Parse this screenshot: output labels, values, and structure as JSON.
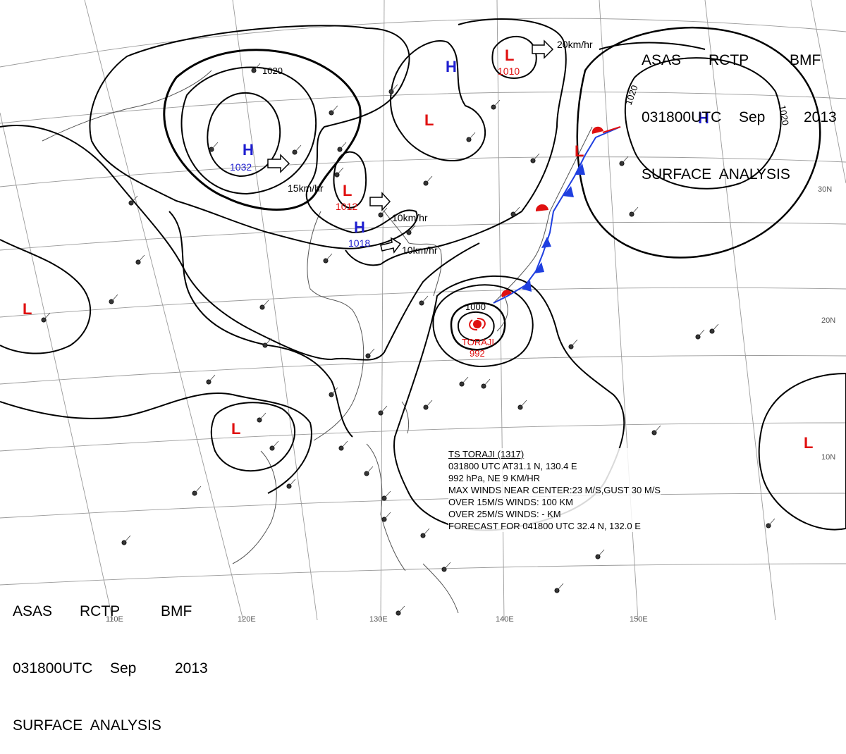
{
  "title_top_right": {
    "line1": [
      "ASAS",
      "RCTP",
      "BMF"
    ],
    "line2": [
      "031800UTC",
      "Sep",
      "2013"
    ],
    "line3": "SURFACE  ANALYSIS"
  },
  "title_bottom_left": {
    "line1": [
      "ASAS",
      "RCTP",
      "BMF"
    ],
    "line2": [
      "031800UTC",
      "Sep",
      "2013"
    ],
    "line3": "SURFACE  ANALYSIS"
  },
  "longitude_labels": [
    "110E",
    "120E",
    "130E",
    "140E",
    "150E"
  ],
  "latitude_labels": [
    "30N",
    "20N",
    "10N"
  ],
  "pressure_centers": [
    {
      "type": "H",
      "value": "1032",
      "color": "#1f1fd0"
    },
    {
      "type": "H",
      "value": "1018",
      "color": "#1f1fd0"
    },
    {
      "type": "H",
      "value": "",
      "color": "#1f1fd0"
    },
    {
      "type": "H",
      "value": "",
      "color": "#1f1fd0"
    },
    {
      "type": "L",
      "value": "1012",
      "color": "#e01010"
    },
    {
      "type": "L",
      "value": "1010",
      "color": "#e01010"
    },
    {
      "type": "L",
      "value": "",
      "color": "#e01010"
    },
    {
      "type": "L",
      "value": "",
      "color": "#e01010"
    },
    {
      "type": "L",
      "value": "",
      "color": "#e01010"
    },
    {
      "type": "L",
      "value": "",
      "color": "#e01010"
    },
    {
      "type": "L",
      "value": "",
      "color": "#e01010"
    }
  ],
  "isobar_labels": [
    "1020",
    "1020",
    "1020",
    "1000"
  ],
  "motion_arrows": [
    {
      "speed": "15km/hr"
    },
    {
      "speed": "10km/hr"
    },
    {
      "speed": "10km/hr"
    },
    {
      "speed": "20km/hr"
    }
  ],
  "typhoon": {
    "name": "TORAJI",
    "pressure": "992",
    "info_header": "TS  TORAJI  (1317)",
    "info_lines": [
      "031800 UTC   AT31.1 N, 130.4 E",
      "992 hPa, NE  9 KM/HR",
      "MAX WINDS NEAR CENTER:23 M/S,GUST 30 M/S",
      "OVER 15M/S WINDS: 100 KM",
      "OVER 25M/S WINDS: - KM",
      "FORECAST FOR 041800 UTC 32.4 N, 132.0 E"
    ]
  },
  "colors": {
    "high": "#1f1fd0",
    "low": "#e01010",
    "cold_front": "#1f3fe0",
    "warm_front": "#e01010",
    "grid": "#9a9a9a",
    "coast": "#555555",
    "isobar": "#000000"
  }
}
